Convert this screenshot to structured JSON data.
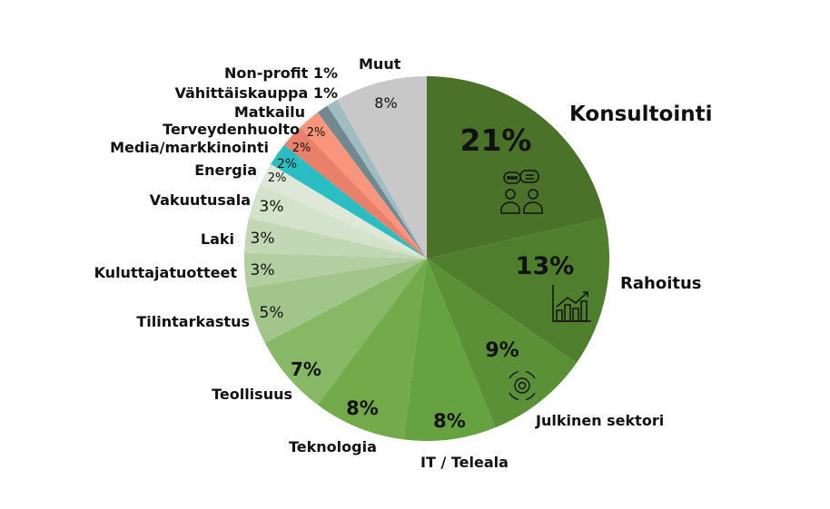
{
  "chart_data": {
    "type": "pie",
    "start": "top",
    "direction": "clockwise",
    "legend": "none",
    "slices": [
      {
        "label": "Konsultointi",
        "value": 21,
        "value_label": "21%",
        "color": "#4a7329",
        "icon": "discussion-people-icon"
      },
      {
        "label": "Rahoitus",
        "value": 13,
        "value_label": "13%",
        "color": "#4f7f2d",
        "icon": "bar-chart-growth-icon"
      },
      {
        "label": "Julkinen sektori",
        "value": 9,
        "value_label": "9%",
        "color": "#5a9136",
        "icon": "gear-cycle-icon"
      },
      {
        "label": "IT / Teleala",
        "value": 8,
        "value_label": "8%",
        "color": "#66a23f"
      },
      {
        "label": "Teknologia",
        "value": 8,
        "value_label": "8%",
        "color": "#73ab4b"
      },
      {
        "label": "Teollisuus",
        "value": 7,
        "value_label": "7%",
        "color": "#86b865"
      },
      {
        "label": "Tilintarkastus",
        "value": 5,
        "value_label": "5%",
        "color": "#a2c58c"
      },
      {
        "label": "Kuluttajatuotteet",
        "value": 3,
        "value_label": "3%",
        "color": "#b3cfa1"
      },
      {
        "label": "Laki",
        "value": 3,
        "value_label": "3%",
        "color": "#c2d8b4"
      },
      {
        "label": "Vakuutusala",
        "value": 3,
        "value_label": "3%",
        "color": "#d3e2ca"
      },
      {
        "label": "Energia",
        "value": 2,
        "value_label": "2%",
        "color": "#dfe8d8"
      },
      {
        "label": "Media/markkinointi",
        "value": 2,
        "value_label": "2%",
        "color": "#2abdc1"
      },
      {
        "label": "Terveydenhuolto",
        "value": 2,
        "value_label": "2%",
        "color": "#e8806a"
      },
      {
        "label": "Matkailu",
        "value": 2,
        "value_label": "2%",
        "color": "#f8957c"
      },
      {
        "label": "Vähittäiskauppa 1%",
        "value": 1,
        "value_label": "",
        "color": "#6f898e"
      },
      {
        "label": "Non-profit 1%",
        "value": 1,
        "value_label": "",
        "color": "#a0bcc2"
      },
      {
        "label": "Muut",
        "value": 8,
        "value_label": "8%",
        "color": "#c8c8c8"
      }
    ]
  }
}
